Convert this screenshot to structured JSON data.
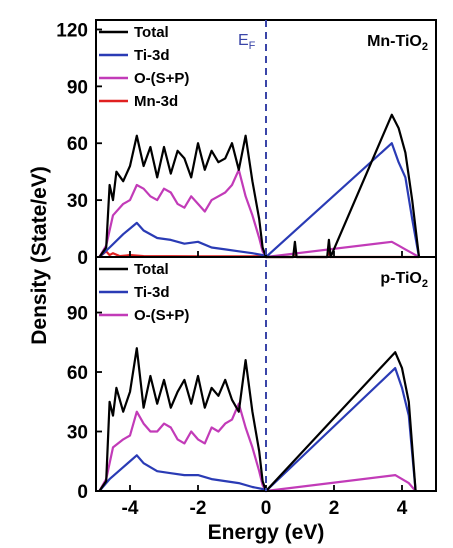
{
  "chart_data": {
    "type": "line",
    "xlabel": "Energy (eV)",
    "ylabel": "Density (State/eV)",
    "xlim": [
      -5,
      5
    ],
    "xticks": [
      -4,
      -2,
      0,
      2,
      4
    ],
    "fermi_label": "E",
    "fermi_sub": "F",
    "fermi_x": 0,
    "colors": {
      "Total": "#000000",
      "Ti-3d": "#2a3bb5",
      "O-(S+P)": "#c23bb8",
      "Mn-3d": "#e02020",
      "fermi": "#3a45a8"
    },
    "panels": [
      {
        "title_main": "Mn-TiO",
        "title_sub": "2",
        "ylim": [
          0,
          125
        ],
        "yticks": [
          0,
          30,
          60,
          90,
          120
        ],
        "legend": [
          "Total",
          "Ti-3d",
          "O-(S+P)",
          "Mn-3d"
        ],
        "series": [
          {
            "name": "Total",
            "x": [
              -4.9,
              -4.7,
              -4.6,
              -4.5,
              -4.4,
              -4.2,
              -4.0,
              -3.8,
              -3.6,
              -3.4,
              -3.2,
              -3.0,
              -2.8,
              -2.6,
              -2.4,
              -2.2,
              -2.0,
              -1.8,
              -1.6,
              -1.4,
              -1.2,
              -1.0,
              -0.8,
              -0.6,
              -0.4,
              -0.2,
              -0.1,
              0.0,
              0.8,
              0.85,
              0.9,
              1.8,
              1.85,
              1.9,
              3.7,
              3.9,
              4.1,
              4.3,
              4.5
            ],
            "y": [
              0,
              5,
              38,
              30,
              45,
              40,
              48,
              64,
              48,
              58,
              42,
              58,
              44,
              56,
              52,
              42,
              60,
              46,
              56,
              50,
              52,
              60,
              46,
              64,
              40,
              20,
              5,
              0,
              0,
              8,
              0,
              0,
              9,
              0,
              75,
              68,
              55,
              30,
              0
            ]
          },
          {
            "name": "Ti-3d",
            "x": [
              -4.9,
              -4.6,
              -4.2,
              -3.8,
              -3.6,
              -3.2,
              -2.8,
              -2.4,
              -2.0,
              -1.6,
              -1.2,
              -0.8,
              -0.4,
              -0.1,
              0.0,
              3.7,
              3.9,
              4.1,
              4.3,
              4.5
            ],
            "y": [
              0,
              5,
              12,
              18,
              14,
              10,
              9,
              7,
              8,
              5,
              4,
              3,
              2,
              1,
              0,
              60,
              50,
              42,
              20,
              0
            ]
          },
          {
            "name": "O-(S+P)",
            "x": [
              -4.9,
              -4.7,
              -4.5,
              -4.2,
              -4.0,
              -3.8,
              -3.6,
              -3.4,
              -3.2,
              -3.0,
              -2.8,
              -2.6,
              -2.4,
              -2.2,
              -2.0,
              -1.8,
              -1.6,
              -1.4,
              -1.2,
              -1.0,
              -0.8,
              -0.6,
              -0.4,
              -0.2,
              -0.1,
              0.0,
              3.7,
              3.9,
              4.1,
              4.3,
              4.5
            ],
            "y": [
              0,
              6,
              22,
              28,
              30,
              38,
              36,
              32,
              30,
              36,
              34,
              28,
              26,
              32,
              28,
              24,
              30,
              32,
              34,
              38,
              46,
              32,
              22,
              10,
              3,
              0,
              8,
              6,
              4,
              2,
              0
            ]
          },
          {
            "name": "Mn-3d",
            "x": [
              -4.9,
              -4.7,
              -4.6,
              -4.5,
              -4.3,
              -4.0,
              -3.6,
              -2.0,
              -0.4,
              -0.2,
              0.0,
              0.8,
              0.85,
              0.9,
              1.8,
              1.85,
              1.9,
              4.5
            ],
            "y": [
              0,
              3,
              1,
              2,
              0.5,
              1,
              0.5,
              0.3,
              0.3,
              0.5,
              0,
              0,
              3,
              0,
              0,
              3,
              0,
              0
            ]
          }
        ]
      },
      {
        "title_main": "p-TiO",
        "title_sub": "2",
        "ylim": [
          0,
          118
        ],
        "yticks": [
          0,
          30,
          60,
          90
        ],
        "legend": [
          "Total",
          "Ti-3d",
          "O-(S+P)"
        ],
        "series": [
          {
            "name": "Total",
            "x": [
              -4.9,
              -4.7,
              -4.6,
              -4.5,
              -4.4,
              -4.2,
              -4.0,
              -3.8,
              -3.6,
              -3.4,
              -3.2,
              -3.0,
              -2.8,
              -2.6,
              -2.4,
              -2.2,
              -2.0,
              -1.8,
              -1.6,
              -1.4,
              -1.2,
              -1.0,
              -0.8,
              -0.6,
              -0.4,
              -0.2,
              -0.1,
              0.0,
              3.8,
              4.0,
              4.2,
              4.4
            ],
            "y": [
              0,
              5,
              45,
              38,
              52,
              40,
              50,
              72,
              42,
              58,
              44,
              56,
              42,
              50,
              56,
              44,
              58,
              42,
              52,
              48,
              56,
              46,
              40,
              66,
              40,
              20,
              5,
              0,
              70,
              62,
              45,
              0
            ]
          },
          {
            "name": "Ti-3d",
            "x": [
              -4.9,
              -4.6,
              -4.2,
              -3.8,
              -3.6,
              -3.2,
              -2.8,
              -2.4,
              -2.0,
              -1.6,
              -1.2,
              -0.8,
              -0.4,
              -0.1,
              0.0,
              3.8,
              4.0,
              4.2,
              4.4
            ],
            "y": [
              0,
              6,
              12,
              18,
              14,
              10,
              9,
              8,
              8,
              6,
              5,
              4,
              2,
              1,
              0,
              62,
              52,
              38,
              0
            ]
          },
          {
            "name": "O-(S+P)",
            "x": [
              -4.9,
              -4.7,
              -4.5,
              -4.2,
              -4.0,
              -3.8,
              -3.6,
              -3.4,
              -3.2,
              -3.0,
              -2.8,
              -2.6,
              -2.4,
              -2.2,
              -2.0,
              -1.8,
              -1.6,
              -1.4,
              -1.2,
              -1.0,
              -0.8,
              -0.6,
              -0.4,
              -0.2,
              -0.1,
              0.0,
              3.8,
              4.0,
              4.2,
              4.4
            ],
            "y": [
              0,
              6,
              22,
              26,
              28,
              40,
              34,
              30,
              30,
              34,
              32,
              26,
              24,
              30,
              26,
              24,
              32,
              30,
              34,
              36,
              44,
              32,
              22,
              10,
              3,
              0,
              8,
              6,
              4,
              0
            ]
          }
        ]
      }
    ]
  }
}
